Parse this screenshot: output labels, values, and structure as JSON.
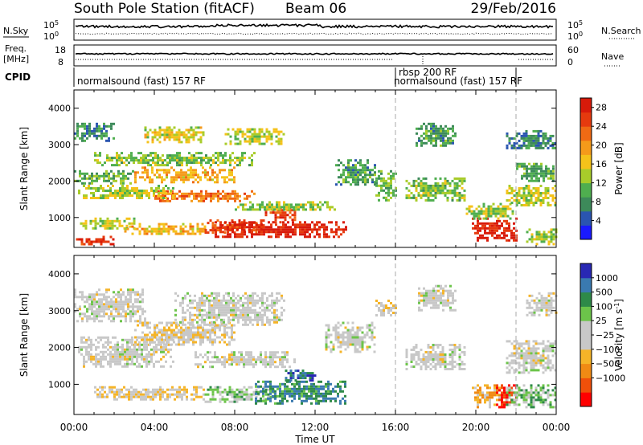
{
  "header": {
    "title": "South Pole Station (fitACF)",
    "beam": "Beam 06",
    "date": "29/Feb/2016"
  },
  "summary": {
    "nsky_label": "N.Sky",
    "nsearch_label": "N.Search",
    "noise_ticks": [
      "10^5",
      "10^0"
    ],
    "noise_ticks_right": [
      "10^5",
      "10^0"
    ],
    "freq_label_1": "Freq.",
    "freq_label_2": "[MHz]",
    "freq_ticks": [
      "18",
      "8"
    ],
    "nave_label": "Nave",
    "nave_ticks": [
      "60",
      "0"
    ],
    "cpid_label": "CPID",
    "cpid_segments": [
      {
        "label": "normalsound (fast) 157 RF",
        "start_hour": 0,
        "end_hour": 16
      },
      {
        "label": "rbsp 200 RF",
        "start_hour": 16,
        "end_hour": 16
      },
      {
        "label": "normalsound (fast) 157 RF",
        "start_hour": 16,
        "end_hour": 22
      }
    ]
  },
  "colors": {
    "power": [
      "#1a1aff",
      "#2a55b0",
      "#3d8a5a",
      "#4fae4f",
      "#a8cc2a",
      "#f5c21a",
      "#f59a1a",
      "#f06a14",
      "#e63a0e",
      "#d81a0a"
    ],
    "velocity": [
      "#ff0000",
      "#f0500a",
      "#f08a14",
      "#f5b428",
      "#c8c8c8",
      "#c8c8c8",
      "#6cc44a",
      "#2e8a48",
      "#3a7ab0",
      "#2828b4"
    ]
  },
  "chart_data": [
    {
      "type": "heatmap",
      "title": "Power",
      "xlabel": "Time UT",
      "ylabel": "Slant Range [km]",
      "xlim": [
        0,
        24
      ],
      "ylim": [
        180,
        4500
      ],
      "x_ticks": [
        "00:00",
        "04:00",
        "08:00",
        "12:00",
        "16:00",
        "20:00",
        "00:00"
      ],
      "y_ticks": [
        1000,
        2000,
        3000,
        4000
      ],
      "colorbar_label": "Power [dB]",
      "colorbar_ticks": [
        "4",
        "8",
        "12",
        "16",
        "20",
        "24",
        "28"
      ],
      "colorbar_range": [
        0,
        30
      ],
      "dashed_lines_hour": [
        16,
        22
      ],
      "echo_regions": [
        {
          "t0": 0.1,
          "t1": 2.0,
          "r0": 300,
          "r1": 500,
          "v": 26
        },
        {
          "t0": 0.3,
          "t1": 3.0,
          "r0": 700,
          "r1": 1000,
          "v": 14
        },
        {
          "t0": 2.5,
          "t1": 6.5,
          "r0": 550,
          "r1": 850,
          "v": 18
        },
        {
          "t0": 6.5,
          "t1": 9.5,
          "r0": 600,
          "r1": 950,
          "v": 24
        },
        {
          "t0": 7.0,
          "t1": 13.5,
          "r0": 450,
          "r1": 900,
          "v": 28
        },
        {
          "t0": 9.5,
          "t1": 11.0,
          "r0": 900,
          "r1": 1300,
          "v": 25
        },
        {
          "t0": 4.0,
          "t1": 9.0,
          "r0": 1450,
          "r1": 1750,
          "v": 22
        },
        {
          "t0": 0.2,
          "t1": 5.0,
          "r0": 1550,
          "r1": 1900,
          "v": 14
        },
        {
          "t0": 0.0,
          "t1": 3.0,
          "r0": 1950,
          "r1": 2300,
          "v": 10
        },
        {
          "t0": 3.0,
          "t1": 8.0,
          "r0": 2000,
          "r1": 2400,
          "v": 18
        },
        {
          "t0": 1.0,
          "t1": 9.0,
          "r0": 2450,
          "r1": 2800,
          "v": 12
        },
        {
          "t0": 3.5,
          "t1": 6.5,
          "r0": 3100,
          "r1": 3500,
          "v": 15
        },
        {
          "t0": 0.0,
          "t1": 2.0,
          "r0": 3100,
          "r1": 3600,
          "v": 8
        },
        {
          "t0": 7.5,
          "t1": 10.5,
          "r0": 3050,
          "r1": 3450,
          "v": 14
        },
        {
          "t0": 8.0,
          "t1": 13.0,
          "r0": 1200,
          "r1": 1450,
          "v": 13
        },
        {
          "t0": 13.0,
          "t1": 15.0,
          "r0": 1900,
          "r1": 2600,
          "v": 9
        },
        {
          "t0": 15.0,
          "t1": 16.0,
          "r0": 1500,
          "r1": 2300,
          "v": 11
        },
        {
          "t0": 16.5,
          "t1": 19.5,
          "r0": 1500,
          "r1": 2100,
          "v": 12
        },
        {
          "t0": 17.0,
          "t1": 19.0,
          "r0": 3000,
          "r1": 3600,
          "v": 9
        },
        {
          "t0": 19.8,
          "t1": 22.0,
          "r0": 400,
          "r1": 1000,
          "v": 28
        },
        {
          "t0": 19.5,
          "t1": 22.0,
          "r0": 1000,
          "r1": 1400,
          "v": 13
        },
        {
          "t0": 21.5,
          "t1": 24.0,
          "r0": 1350,
          "r1": 1900,
          "v": 14
        },
        {
          "t0": 22.0,
          "t1": 24.0,
          "r0": 2000,
          "r1": 2500,
          "v": 10
        },
        {
          "t0": 22.5,
          "t1": 24.0,
          "r0": 300,
          "r1": 700,
          "v": 14
        },
        {
          "t0": 21.5,
          "t1": 24.0,
          "r0": 2900,
          "r1": 3400,
          "v": 7
        }
      ]
    },
    {
      "type": "heatmap",
      "title": "Velocity",
      "xlabel": "Time UT",
      "ylabel": "Slant Range [km]",
      "xlim": [
        0,
        24
      ],
      "ylim": [
        180,
        4500
      ],
      "x_ticks": [
        "00:00",
        "04:00",
        "08:00",
        "12:00",
        "16:00",
        "20:00",
        "00:00"
      ],
      "y_ticks": [
        1000,
        2000,
        3000,
        4000
      ],
      "colorbar_label": "Velocity [m s^-1]",
      "colorbar_ticks": [
        "1000",
        "500",
        "100",
        "25",
        "−25",
        "−100",
        "−500",
        "−1000"
      ],
      "colorbar_range": [
        -1250,
        1250
      ],
      "dashed_lines_hour": [
        16,
        22
      ],
      "echo_regions": [
        {
          "t0": 0.2,
          "t1": 5.0,
          "r0": 1450,
          "r1": 2300,
          "v": 0
        },
        {
          "t0": 0.0,
          "t1": 3.5,
          "r0": 2700,
          "r1": 3600,
          "v": 0
        },
        {
          "t0": 3.0,
          "t1": 8.0,
          "r0": 2100,
          "r1": 2700,
          "v": -150
        },
        {
          "t0": 5.0,
          "t1": 10.5,
          "r0": 2600,
          "r1": 3500,
          "v": 10
        },
        {
          "t0": 6.0,
          "t1": 11.0,
          "r0": 1500,
          "r1": 1900,
          "v": 0
        },
        {
          "t0": 1.0,
          "t1": 6.5,
          "r0": 600,
          "r1": 950,
          "v": -200
        },
        {
          "t0": 6.5,
          "t1": 10.0,
          "r0": 550,
          "r1": 950,
          "v": 300
        },
        {
          "t0": 9.0,
          "t1": 13.5,
          "r0": 450,
          "r1": 1100,
          "v": 700
        },
        {
          "t0": 10.5,
          "t1": 12.0,
          "r0": 1100,
          "r1": 1400,
          "v": 900
        },
        {
          "t0": 12.5,
          "t1": 15.0,
          "r0": 1900,
          "r1": 2700,
          "v": 0
        },
        {
          "t0": 15.0,
          "t1": 16.0,
          "r0": 2900,
          "r1": 3300,
          "v": -150
        },
        {
          "t0": 16.5,
          "t1": 19.5,
          "r0": 1400,
          "r1": 2100,
          "v": 0
        },
        {
          "t0": 17.0,
          "t1": 19.0,
          "r0": 3000,
          "r1": 3700,
          "v": 0
        },
        {
          "t0": 19.8,
          "t1": 21.2,
          "r0": 400,
          "r1": 1000,
          "v": -400
        },
        {
          "t0": 21.0,
          "t1": 22.0,
          "r0": 400,
          "r1": 1000,
          "v": -1100
        },
        {
          "t0": 21.5,
          "t1": 24.0,
          "r0": 400,
          "r1": 1000,
          "v": 350
        },
        {
          "t0": 21.5,
          "t1": 24.0,
          "r0": 1300,
          "r1": 2200,
          "v": 0
        },
        {
          "t0": 22.5,
          "t1": 24.0,
          "r0": 2900,
          "r1": 3500,
          "v": 0
        }
      ]
    }
  ]
}
